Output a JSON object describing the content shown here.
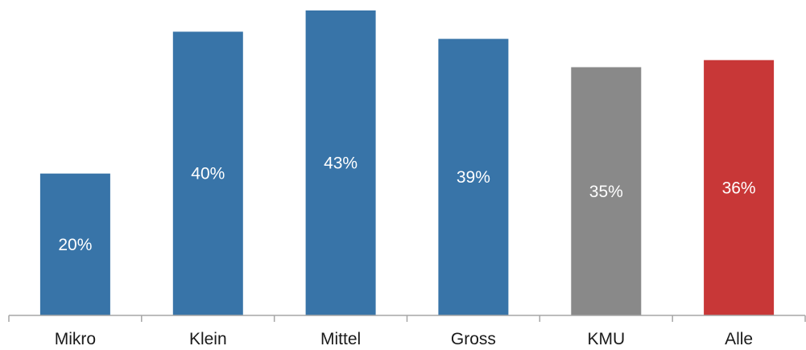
{
  "chart_data": {
    "type": "bar",
    "categories": [
      "Mikro",
      "Klein",
      "Mittel",
      "Gross",
      "KMU",
      "Alle"
    ],
    "values": [
      20,
      40,
      43,
      39,
      35,
      36
    ],
    "data_labels": [
      "20%",
      "40%",
      "43%",
      "39%",
      "35%",
      "36%"
    ],
    "colors": [
      "#3874a8",
      "#3874a8",
      "#3874a8",
      "#3874a8",
      "#898989",
      "#c83737"
    ],
    "ylim": [
      0,
      43
    ],
    "grid": false,
    "legend": "none",
    "title": "",
    "xlabel": "",
    "ylabel": ""
  }
}
